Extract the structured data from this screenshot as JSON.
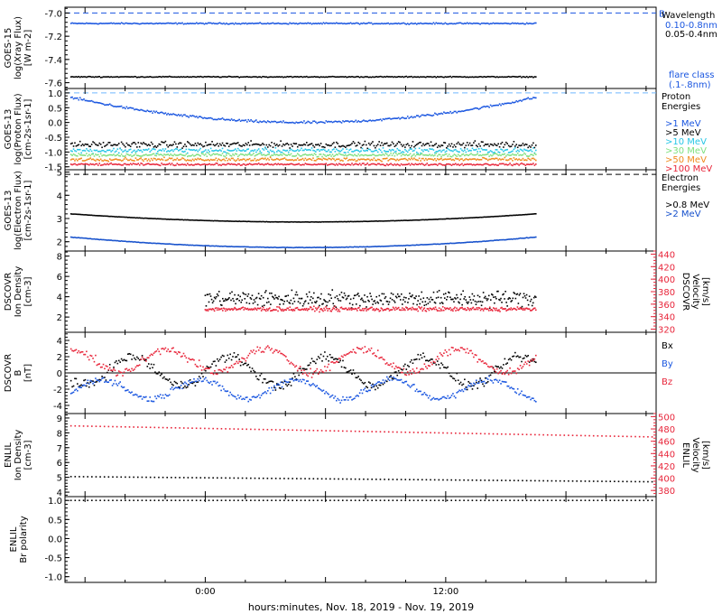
{
  "colors": {
    "black": "#000000",
    "blue": "#1a56e0",
    "cyan": "#26c6e6",
    "green": "#7fe07f",
    "yellow": "#d8c200",
    "orange": "#f08a1c",
    "red": "#e8253a",
    "dashblue": "#1a56e0",
    "lightdash": "#6fb8ff",
    "darkblue": "#1550cc"
  },
  "x_axis": {
    "label": "hours:minutes, Nov. 18, 2019 - Nov. 19, 2019",
    "range_hours": [
      -7,
      22.5
    ],
    "ticks": [
      {
        "h": 0,
        "label": "0:00"
      },
      {
        "h": 12,
        "label": "12:00"
      }
    ],
    "data_end_hours": 16.5
  },
  "chart_data": [
    {
      "type": "scatter",
      "ylabel": [
        "GOES-15",
        "log(Xray Flux)",
        "[W m-2]"
      ],
      "ylim": [
        -7.65,
        -6.95
      ],
      "yticks": [
        -7.0,
        -7.2,
        -7.4,
        -7.6
      ],
      "reference_lines": [
        {
          "y": -7.0,
          "label": "B",
          "color": "dashblue"
        }
      ],
      "legend_title": "Wavelength",
      "series": [
        {
          "name": "0.10-0.8nm",
          "color": "blue",
          "mean": -7.09,
          "trend": [
            -7.09,
            -7.09
          ],
          "jitter": 0.008
        },
        {
          "name": "0.05-0.4nm",
          "color": "black",
          "mean": -7.55,
          "trend": [
            -7.55,
            -7.55
          ],
          "jitter": 0.006
        }
      ],
      "legend_extra": [
        "flare class",
        "(.1-.8nm)"
      ]
    },
    {
      "type": "scatter",
      "ylabel": [
        "GOES-13",
        "log(Proton Flux)",
        "[cm-2s-1sr-1]"
      ],
      "ylim": [
        -1.6,
        1.15
      ],
      "yticks": [
        1.0,
        0.5,
        0.0,
        -0.5,
        -1.0,
        -1.5
      ],
      "reference_lines": [
        {
          "y": 1.0,
          "color": "lightdash"
        }
      ],
      "legend_title": [
        "Proton",
        "Energies"
      ],
      "series": [
        {
          "name": ">1 MeV",
          "color": "blue",
          "curve": "bowl",
          "top": 0.85,
          "bottom": 0.0,
          "jitter": 0.06
        },
        {
          "name": ">5 MeV",
          "color": "black",
          "mean": -0.75,
          "jitter": 0.15
        },
        {
          "name": ">10 MeV",
          "color": "cyan",
          "mean": -0.95,
          "jitter": 0.12
        },
        {
          "name": ">30 MeV",
          "color": "green",
          "mean": -1.1,
          "jitter": 0.08
        },
        {
          "name": ">50 MeV",
          "color": "orange",
          "mean": -1.25,
          "jitter": 0.08
        },
        {
          "name": ">100 MeV",
          "color": "red",
          "mean": -1.42,
          "jitter": 0.05
        }
      ]
    },
    {
      "type": "line",
      "ylabel": [
        "GOES-13",
        "log(Electron Flux)",
        "[cm-2s-1sr-1]"
      ],
      "ylim": [
        1.6,
        5.1
      ],
      "yticks": [
        5,
        4,
        3,
        2
      ],
      "reference_lines": [
        {
          "y": 4.9,
          "color": "black"
        }
      ],
      "legend_title": [
        "Electron",
        "Energies"
      ],
      "series": [
        {
          "name": ">0.8 MeV",
          "color": "black",
          "curve": "bowl",
          "top": 3.2,
          "bottom": 2.85,
          "jitter": 0.01
        },
        {
          "name": ">2 MeV",
          "color": "darkblue",
          "curve": "bowl",
          "top": 2.2,
          "bottom": 1.75,
          "jitter": 0.015
        }
      ]
    },
    {
      "type": "scatter",
      "ylabel": [
        "DSCOVR",
        "Ion Density",
        "[cm-3]"
      ],
      "ylim": [
        0.5,
        8.5
      ],
      "yticks": [
        8,
        6,
        4,
        2
      ],
      "right_axis": {
        "label": [
          "DSCOVR",
          "Velocity",
          "[km/s]"
        ],
        "ylim": [
          315,
          445
        ],
        "yticks": [
          440,
          420,
          400,
          380,
          360,
          340,
          320
        ]
      },
      "x_start_hours": 0,
      "series": [
        {
          "name": "Ion Density",
          "color": "black",
          "mean": 3.8,
          "jitter": 1.2
        },
        {
          "name": "Velocity",
          "color": "red",
          "axis": "right",
          "mean": 352,
          "jitter": 5
        }
      ]
    },
    {
      "type": "line",
      "ylabel": [
        "DSCOVR",
        "B",
        "[nT]"
      ],
      "ylim": [
        -5,
        5
      ],
      "yticks": [
        4,
        2,
        0,
        -2,
        -4
      ],
      "zero_line": true,
      "series": [
        {
          "name": "Bx",
          "color": "black",
          "mean": 0.2,
          "amp": 2.2
        },
        {
          "name": "By",
          "color": "blue",
          "mean": -2.0,
          "amp": 1.5
        },
        {
          "name": "Bz",
          "color": "red",
          "mean": 1.5,
          "amp": 1.8
        }
      ],
      "legend_labels": [
        "Bx",
        "By",
        "Bz"
      ]
    },
    {
      "type": "line",
      "ylabel": [
        "ENLIL",
        "Ion Density",
        "[cm-3]"
      ],
      "ylim": [
        3.7,
        9.3
      ],
      "yticks": [
        9,
        8,
        7,
        6,
        5,
        4
      ],
      "right_axis": {
        "label": [
          "ENLIL",
          "Velocity",
          "[km/s]"
        ],
        "ylim": [
          370,
          505
        ],
        "yticks": [
          500,
          480,
          460,
          440,
          420,
          400,
          380
        ]
      },
      "series": [
        {
          "name": "Ion Density",
          "color": "black",
          "from": 5.05,
          "to": 4.7
        },
        {
          "name": "Velocity",
          "color": "red",
          "axis": "right",
          "from": 485,
          "to": 467
        }
      ]
    },
    {
      "type": "line",
      "ylabel": [
        "ENLIL",
        "Br polarity"
      ],
      "ylim": [
        -1.15,
        1.1
      ],
      "yticks": [
        1.0,
        0.5,
        0.0,
        -0.5,
        -1.0
      ],
      "series": [
        {
          "name": "Br polarity",
          "color": "black",
          "value": 1.0
        }
      ]
    }
  ]
}
